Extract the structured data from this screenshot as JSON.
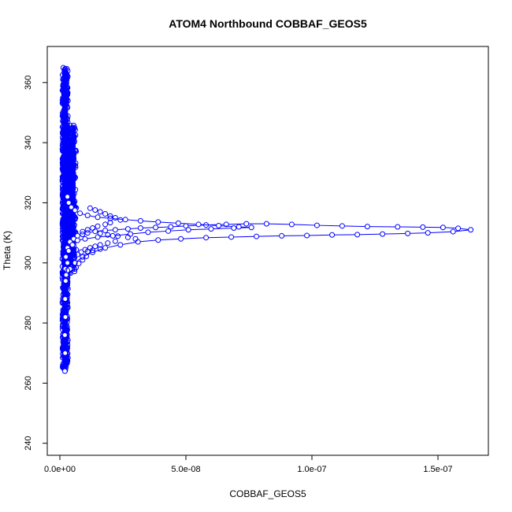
{
  "chart_data": {
    "type": "scatter",
    "title": "ATOM4 Northbound COBBAF_GEOS5",
    "xlabel": "COBBAF_GEOS5",
    "ylabel": "Theta (K)",
    "xlim": [
      -5e-09,
      1.7e-07
    ],
    "ylim": [
      236,
      372
    ],
    "x_ticks": [
      {
        "value": 0,
        "label": "0.0e+00"
      },
      {
        "value": 5e-08,
        "label": "5.0e-08"
      },
      {
        "value": 1e-07,
        "label": "1.0e-07"
      },
      {
        "value": 1.5e-07,
        "label": "1.5e-07"
      }
    ],
    "y_ticks": [
      {
        "value": 240,
        "label": "240"
      },
      {
        "value": 260,
        "label": "260"
      },
      {
        "value": 280,
        "label": "280"
      },
      {
        "value": 300,
        "label": "300"
      },
      {
        "value": 320,
        "label": "320"
      },
      {
        "value": 340,
        "label": "340"
      },
      {
        "value": 360,
        "label": "360"
      }
    ],
    "color": "#0000ff",
    "marker": "open-circle",
    "lines": true,
    "series": [
      {
        "points": [
          [
            2e-09,
            264
          ],
          [
            2.1e-09,
            270
          ],
          [
            2e-09,
            276
          ],
          [
            2.2e-09,
            282
          ],
          [
            2.1e-09,
            288
          ],
          [
            2.3e-09,
            294
          ],
          [
            2.2e-09,
            298
          ],
          [
            2.4e-09,
            302
          ],
          [
            3e-09,
            305
          ],
          [
            4e-09,
            307
          ],
          [
            5.5e-09,
            308
          ],
          [
            7e-09,
            309
          ],
          [
            9e-09,
            309.5
          ],
          [
            1.1e-08,
            310
          ],
          [
            1.4e-08,
            310.5
          ],
          [
            1.8e-08,
            310.8
          ],
          [
            2.2e-08,
            311
          ],
          [
            2.7e-08,
            311.3
          ],
          [
            3.2e-08,
            311.6
          ],
          [
            3.8e-08,
            311.8
          ],
          [
            4.4e-08,
            312
          ],
          [
            5e-08,
            312.3
          ],
          [
            5.8e-08,
            312.6
          ],
          [
            6.6e-08,
            312.8
          ],
          [
            7.4e-08,
            313
          ],
          [
            8.2e-08,
            313
          ],
          [
            9.2e-08,
            312.8
          ],
          [
            1.02e-07,
            312.5
          ],
          [
            1.12e-07,
            312.3
          ],
          [
            1.22e-07,
            312.1
          ],
          [
            1.34e-07,
            312.0
          ],
          [
            1.44e-07,
            311.9
          ],
          [
            1.52e-07,
            311.8
          ],
          [
            1.58e-07,
            311.5
          ],
          [
            1.63e-07,
            311.0
          ],
          [
            1.56e-07,
            310.4
          ],
          [
            1.46e-07,
            310.0
          ],
          [
            1.38e-07,
            309.8
          ],
          [
            1.28e-07,
            309.6
          ],
          [
            1.18e-07,
            309.4
          ],
          [
            1.08e-07,
            309.3
          ],
          [
            9.8e-08,
            309.1
          ],
          [
            8.8e-08,
            309.0
          ],
          [
            7.8e-08,
            308.8
          ],
          [
            6.8e-08,
            308.6
          ],
          [
            5.8e-08,
            308.4
          ],
          [
            4.8e-08,
            308.0
          ],
          [
            3.9e-08,
            307.6
          ],
          [
            3.1e-08,
            307.0
          ],
          [
            2.4e-08,
            306.0
          ],
          [
            1.8e-08,
            305.0
          ],
          [
            1.3e-08,
            303.5
          ],
          [
            9e-09,
            302.0
          ],
          [
            6e-09,
            300.0
          ],
          [
            4e-09,
            298.0
          ],
          [
            3e-09,
            297.5
          ]
        ]
      },
      {
        "points": [
          [
            2.5e-09,
            296
          ],
          [
            3e-09,
            300
          ],
          [
            3.5e-09,
            304
          ],
          [
            5e-09,
            306
          ],
          [
            7e-09,
            307.5
          ],
          [
            1e-08,
            308
          ],
          [
            1.5e-08,
            308.6
          ],
          [
            2.1e-08,
            309
          ],
          [
            2.8e-08,
            309.6
          ],
          [
            3.5e-08,
            310.2
          ],
          [
            4.3e-08,
            310.6
          ],
          [
            5.1e-08,
            311
          ],
          [
            6e-08,
            311.3
          ],
          [
            6.9e-08,
            311.6
          ],
          [
            7.6e-08,
            311.8
          ],
          [
            7.1e-08,
            312.0
          ],
          [
            6.3e-08,
            312.4
          ],
          [
            5.5e-08,
            312.8
          ],
          [
            4.7e-08,
            313.2
          ],
          [
            3.9e-08,
            313.6
          ],
          [
            3.2e-08,
            314.0
          ],
          [
            2.6e-08,
            314.4
          ],
          [
            2e-08,
            314.8
          ],
          [
            1.5e-08,
            315.2
          ],
          [
            1.1e-08,
            315.8
          ],
          [
            8e-09,
            316.5
          ],
          [
            6e-09,
            317.5
          ],
          [
            4.5e-09,
            318.5
          ],
          [
            3.5e-09,
            320.0
          ],
          [
            3e-09,
            322.0
          ]
        ]
      }
    ],
    "dense_column": {
      "x_min": 1e-09,
      "x_max": 3.2e-09,
      "y_min": 264,
      "y_max": 365,
      "extra_x_max": 6.5e-09,
      "extra_y_min": 296,
      "extra_y_max": 346
    },
    "branch_points": [
      [
        1.2e-08,
        318.2
      ],
      [
        1.4e-08,
        317.6
      ],
      [
        1.6e-08,
        317.0
      ],
      [
        1.8e-08,
        316.3
      ],
      [
        2e-08,
        315.6
      ],
      [
        2.2e-08,
        315.0
      ],
      [
        2.4e-08,
        314.3
      ],
      [
        2e-08,
        313.4
      ],
      [
        1.8e-08,
        312.8
      ],
      [
        1.5e-08,
        312.2
      ],
      [
        1.3e-08,
        311.6
      ],
      [
        1.1e-08,
        311.0
      ],
      [
        9e-09,
        310.4
      ],
      [
        1.6e-08,
        309.8
      ],
      [
        1.9e-08,
        309.3
      ],
      [
        2.3e-08,
        308.9
      ],
      [
        2.7e-08,
        308.5
      ],
      [
        3e-08,
        308.0
      ],
      [
        2.2e-08,
        307.2
      ],
      [
        1.9e-08,
        306.6
      ],
      [
        1.6e-08,
        306.0
      ],
      [
        1.4e-08,
        305.5
      ],
      [
        1.2e-08,
        305.0
      ],
      [
        1e-08,
        304.4
      ],
      [
        8.5e-09,
        303.6
      ],
      [
        7e-09,
        302.8
      ],
      [
        1.1e-08,
        303.8
      ],
      [
        1.3e-08,
        304.2
      ],
      [
        1.6e-08,
        304.6
      ],
      [
        9e-09,
        301.0
      ],
      [
        7.5e-09,
        299.8
      ],
      [
        1.05e-08,
        302.2
      ]
    ]
  }
}
